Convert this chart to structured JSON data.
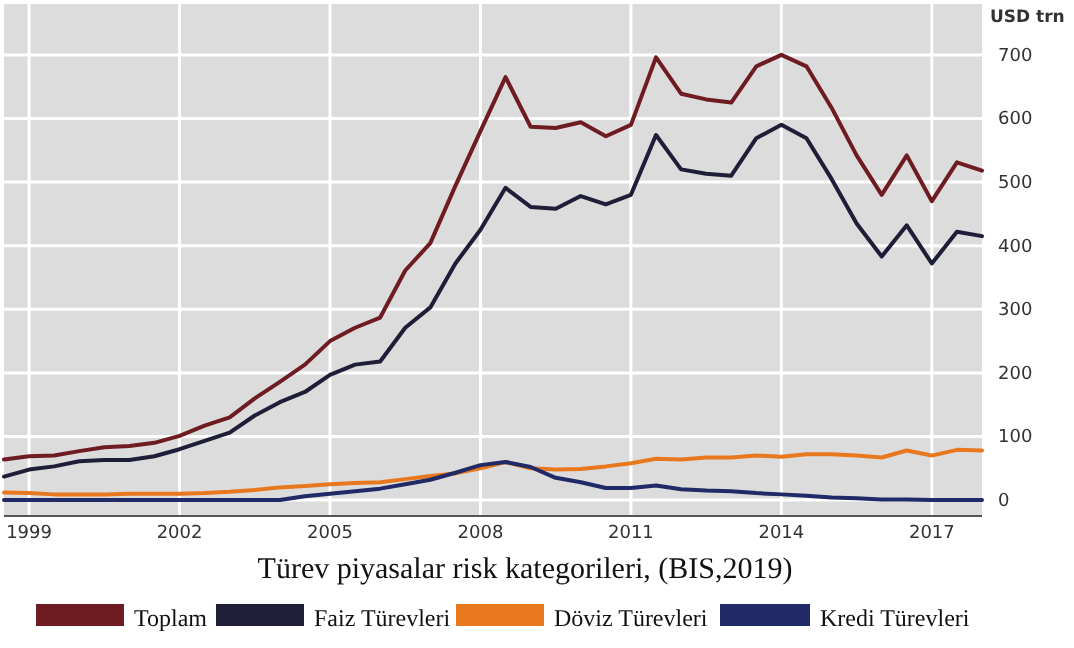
{
  "chart_data": {
    "type": "line",
    "ylabel": "USD trn",
    "annotations": [
      "Türev piyasalar risk kategorileri, (BIS,2019)"
    ],
    "x": [
      1998.5,
      1999,
      1999.5,
      2000,
      2000.5,
      2001,
      2001.5,
      2002,
      2002.5,
      2003,
      2003.5,
      2004,
      2004.5,
      2005,
      2005.5,
      2006,
      2006.5,
      2007,
      2007.5,
      2008,
      2008.5,
      2009,
      2009.5,
      2010,
      2010.5,
      2011,
      2011.5,
      2012,
      2012.5,
      2013,
      2013.5,
      2014,
      2014.5,
      2015,
      2015.5,
      2016,
      2016.5,
      2017,
      2017.5,
      2018
    ],
    "series": [
      {
        "name": "Toplam",
        "color": "#6e1c22",
        "values": [
          64,
          69,
          70,
          77,
          83,
          85,
          90,
          101,
          117,
          130,
          160,
          186,
          213,
          250,
          271,
          287,
          361,
          404,
          494,
          580,
          665,
          587,
          585,
          594,
          572,
          590,
          696,
          639,
          630,
          625,
          682,
          700,
          682,
          617,
          542,
          480,
          542,
          470,
          531,
          518
        ]
      },
      {
        "name": "Faiz Türevleri",
        "color": "#1e1e38",
        "values": [
          37,
          48,
          53,
          61,
          63,
          63,
          69,
          80,
          93,
          106,
          133,
          154,
          170,
          197,
          213,
          218,
          271,
          303,
          372,
          425,
          491,
          461,
          458,
          478,
          465,
          480,
          574,
          520,
          513,
          510,
          569,
          590,
          569,
          505,
          435,
          383,
          432,
          372,
          422,
          415
        ]
      },
      {
        "name": "Döviz Türevleri",
        "color": "#e8781e",
        "values": [
          12,
          11,
          9,
          9,
          9,
          10,
          10,
          10,
          11,
          13,
          16,
          20,
          22,
          25,
          27,
          28,
          33,
          38,
          42,
          50,
          60,
          50,
          48,
          49,
          53,
          58,
          65,
          64,
          67,
          67,
          70,
          68,
          72,
          72,
          70,
          67,
          78,
          70,
          79,
          78
        ]
      },
      {
        "name": "Kredi Türevleri",
        "color": "#1f2a66",
        "values": [
          0,
          0,
          0,
          0,
          0,
          0,
          0,
          0,
          0,
          0,
          0,
          0,
          6,
          10,
          14,
          18,
          25,
          32,
          43,
          55,
          60,
          52,
          35,
          28,
          19,
          19,
          23,
          17,
          15,
          14,
          11,
          9,
          7,
          4,
          3,
          1,
          1,
          0,
          0,
          0
        ]
      }
    ],
    "xlim": [
      1998.5,
      2018
    ],
    "xticks": [
      1999,
      2002,
      2005,
      2008,
      2011,
      2014,
      2017
    ],
    "ylim": [
      -25,
      780
    ],
    "yticks": [
      0,
      100,
      200,
      300,
      400,
      500,
      600,
      700
    ],
    "grid": true,
    "legend": "bottom"
  }
}
